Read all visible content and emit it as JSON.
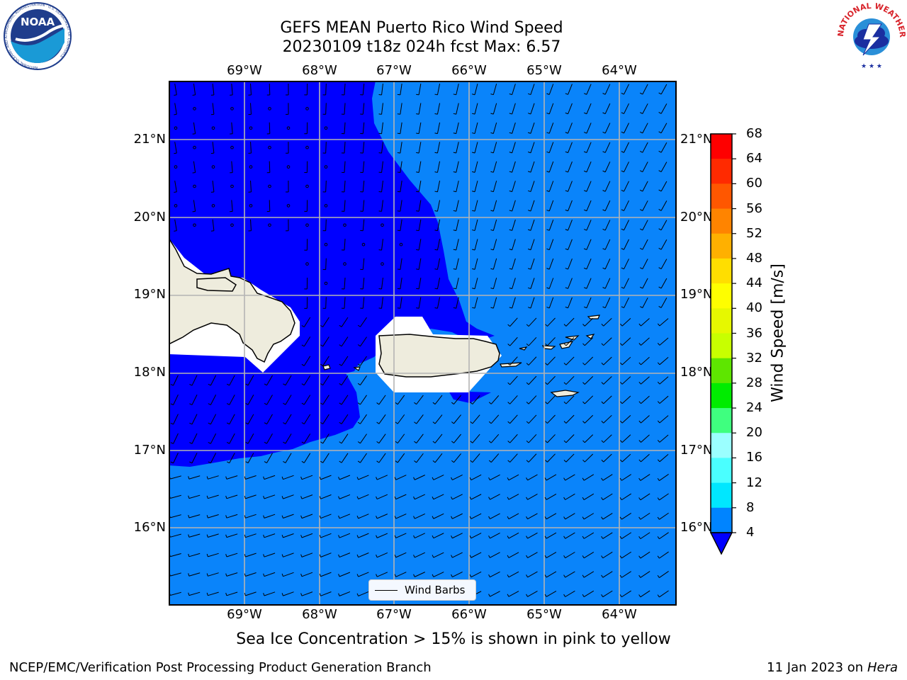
{
  "title": {
    "line1": "GEFS MEAN Puerto Rico Wind Speed",
    "line2": "20230109 t18z 024h fcst   Max: 6.57"
  },
  "map": {
    "lon_labels": [
      "69°W",
      "68°W",
      "67°W",
      "66°W",
      "65°W",
      "64°W"
    ],
    "lat_labels": [
      "21°N",
      "20°N",
      "19°N",
      "18°N",
      "17°N",
      "16°N"
    ],
    "colors": {
      "dark_blue": "#0000ff",
      "light_blue": "#0a84fa",
      "land": "#eeecdd",
      "grid": "#b4b4b4"
    },
    "legend_label": "Wind Barbs"
  },
  "colorbar": {
    "label": "Wind Speed [m/s]",
    "ticks": [
      "68",
      "64",
      "60",
      "56",
      "52",
      "48",
      "44",
      "40",
      "36",
      "32",
      "28",
      "24",
      "20",
      "16",
      "12",
      "8",
      "4"
    ],
    "bins": [
      {
        "from": 64,
        "color": "#fe0000"
      },
      {
        "from": 60,
        "color": "#ff2a00"
      },
      {
        "from": 56,
        "color": "#ff5700"
      },
      {
        "from": 52,
        "color": "#ff8400"
      },
      {
        "from": 48,
        "color": "#ffb000"
      },
      {
        "from": 44,
        "color": "#ffde00"
      },
      {
        "from": 40,
        "color": "#fefe00"
      },
      {
        "from": 36,
        "color": "#e6f800"
      },
      {
        "from": 32,
        "color": "#c8ff00"
      },
      {
        "from": 28,
        "color": "#5ee600"
      },
      {
        "from": 24,
        "color": "#00ec00"
      },
      {
        "from": 20,
        "color": "#3fff7f"
      },
      {
        "from": 16,
        "color": "#9bffff"
      },
      {
        "from": 12,
        "color": "#4affff"
      },
      {
        "from": 8,
        "color": "#00e7ff"
      },
      {
        "from": 4,
        "color": "#0084ff"
      }
    ],
    "under_color": "#0000ff"
  },
  "footer": {
    "note": "Sea Ice Concentration > 15% is shown in pink to yellow",
    "credit": "NCEP/EMC/Verification Post Processing Product Generation Branch",
    "date": "11 Jan 2023 on ",
    "machine": "Hera"
  },
  "logos": {
    "noaa": "NOAA",
    "noaa_ring_text": "NATIONAL OCEANIC AND ATMOSPHERIC ADMINISTRATION · U.S. DEPARTMENT OF COMMERCE",
    "nws_ring_text": "NATIONAL WEATHER SERVICE"
  }
}
